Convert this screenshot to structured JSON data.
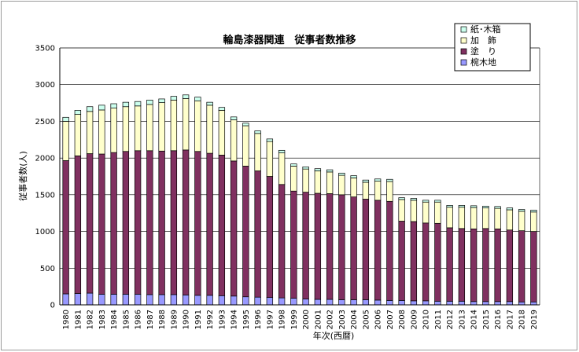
{
  "chart_data": {
    "type": "bar",
    "stacked": true,
    "title": "輪島漆器関連　従事者数推移",
    "xlabel": "年次(西暦)",
    "ylabel": "従事者数(人)",
    "ylim": [
      0,
      3500
    ],
    "yticks": [
      "0",
      "500",
      "1000",
      "1500",
      "2000",
      "2500",
      "3000",
      "3500"
    ],
    "grid": true,
    "legend_position": "top-right",
    "categories": [
      "1980",
      "1981",
      "1982",
      "1983",
      "1984",
      "1985",
      "1986",
      "1987",
      "1988",
      "1989",
      "1990",
      "1991",
      "1992",
      "1993",
      "1994",
      "1995",
      "1996",
      "1997",
      "1998",
      "1999",
      "2000",
      "2001",
      "2002",
      "2003",
      "2004",
      "2005",
      "2006",
      "2007",
      "2008",
      "2009",
      "2010",
      "2011",
      "2012",
      "2013",
      "2014",
      "2015",
      "2016",
      "2017",
      "2018",
      "2019"
    ],
    "series": [
      {
        "name": "椀木地",
        "color": "#9999ff",
        "values": [
          150,
          155,
          160,
          145,
          145,
          145,
          145,
          140,
          140,
          140,
          135,
          130,
          130,
          125,
          120,
          110,
          105,
          100,
          95,
          90,
          80,
          75,
          75,
          70,
          70,
          70,
          65,
          60,
          60,
          55,
          55,
          50,
          50,
          50,
          45,
          45,
          45,
          45,
          40,
          40
        ]
      },
      {
        "name": "塗　り",
        "color": "#803060",
        "values": [
          1815,
          1875,
          1900,
          1910,
          1930,
          1945,
          1955,
          1960,
          1955,
          1960,
          1975,
          1960,
          1935,
          1915,
          1840,
          1780,
          1720,
          1650,
          1545,
          1460,
          1455,
          1445,
          1440,
          1430,
          1400,
          1370,
          1360,
          1350,
          1080,
          1080,
          1060,
          1060,
          1000,
          990,
          990,
          995,
          990,
          975,
          970,
          960
        ]
      },
      {
        "name": "加　飾",
        "color": "#ffffcc",
        "values": [
          535,
          565,
          575,
          600,
          605,
          610,
          610,
          630,
          660,
          690,
          700,
          690,
          655,
          610,
          560,
          550,
          510,
          475,
          430,
          340,
          315,
          305,
          295,
          265,
          260,
          230,
          260,
          270,
          295,
          290,
          285,
          290,
          280,
          290,
          290,
          280,
          280,
          275,
          265,
          265
        ]
      },
      {
        "name": "紙･木箱",
        "color": "#ccffee",
        "values": [
          55,
          55,
          65,
          65,
          60,
          60,
          60,
          60,
          50,
          50,
          50,
          50,
          40,
          40,
          40,
          35,
          35,
          35,
          35,
          30,
          30,
          30,
          30,
          30,
          30,
          30,
          30,
          30,
          25,
          25,
          25,
          25,
          25,
          25,
          25,
          25,
          25,
          25,
          25,
          25
        ]
      }
    ]
  }
}
